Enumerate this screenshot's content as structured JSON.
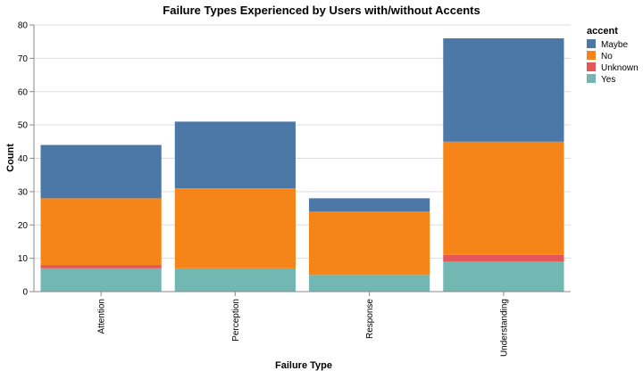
{
  "chart_data": {
    "type": "bar",
    "stacked": true,
    "title": "Failure Types Experienced by Users with/without Accents",
    "xlabel": "Failure Type",
    "ylabel": "Count",
    "ylim": [
      0,
      80
    ],
    "yticks": [
      0,
      10,
      20,
      30,
      40,
      50,
      60,
      70,
      80
    ],
    "grid": true,
    "categories": [
      "Attention",
      "Perception",
      "Response",
      "Understanding"
    ],
    "legend": {
      "title": "accent",
      "position": "top-right"
    },
    "series": [
      {
        "name": "Yes",
        "color": "#72b7b2",
        "values": [
          7,
          7,
          5,
          9
        ]
      },
      {
        "name": "Unknown",
        "color": "#e45756",
        "values": [
          1,
          0,
          0,
          2
        ]
      },
      {
        "name": "No",
        "color": "#f58518",
        "values": [
          20,
          24,
          19,
          34
        ]
      },
      {
        "name": "Maybe",
        "color": "#4c78a8",
        "values": [
          16,
          20,
          4,
          31
        ]
      }
    ],
    "legend_order": [
      "Maybe",
      "No",
      "Unknown",
      "Yes"
    ]
  }
}
